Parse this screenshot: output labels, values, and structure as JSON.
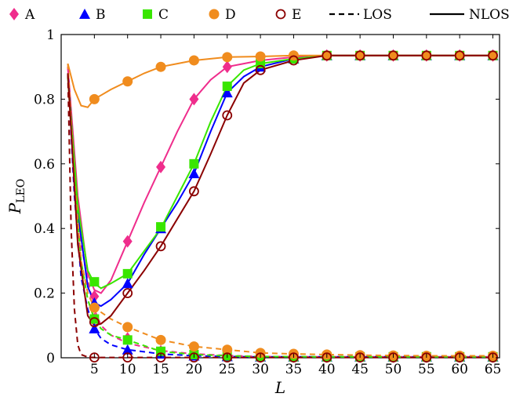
{
  "chart_data": {
    "type": "line",
    "title": "",
    "xlabel": "L",
    "ylabel": "P",
    "ylabel_sub": "LEO",
    "xlim": [
      0,
      66
    ],
    "ylim": [
      0,
      1
    ],
    "xticks": [
      5,
      10,
      15,
      20,
      25,
      30,
      35,
      40,
      45,
      50,
      55,
      60,
      65
    ],
    "yticks": [
      0,
      0.2,
      0.4,
      0.6,
      0.8,
      1
    ],
    "ytick_labels": [
      "0",
      "0.2",
      "0.4",
      "0.6",
      "0.8",
      "1"
    ],
    "grid": false,
    "legend_position": "top",
    "colors": {
      "A": "#ef2d8c",
      "B": "#0000ff",
      "C": "#39e600",
      "D": "#f08c1e",
      "E": "#8b0000"
    },
    "series": [
      {
        "name": "A",
        "marker": "diamond",
        "color": "#ef2d8c",
        "nlos": [
          [
            1,
            0.9
          ],
          [
            2.5,
            0.5
          ],
          [
            4,
            0.26
          ],
          [
            5,
            0.21
          ],
          [
            6,
            0.2
          ],
          [
            7.5,
            0.24
          ],
          [
            10,
            0.36
          ],
          [
            12.5,
            0.48
          ],
          [
            15,
            0.59
          ],
          [
            17.5,
            0.7
          ],
          [
            20,
            0.8
          ],
          [
            22.5,
            0.86
          ],
          [
            25,
            0.9
          ],
          [
            27.5,
            0.91
          ],
          [
            30,
            0.92
          ],
          [
            35,
            0.93
          ],
          [
            40,
            0.935
          ],
          [
            45,
            0.935
          ],
          [
            50,
            0.935
          ],
          [
            55,
            0.935
          ],
          [
            60,
            0.935
          ],
          [
            65,
            0.935
          ]
        ],
        "los": [
          [
            1,
            0.9
          ],
          [
            2,
            0.6
          ],
          [
            3,
            0.35
          ],
          [
            4,
            0.24
          ],
          [
            5,
            0.15
          ],
          [
            6,
            0.1
          ],
          [
            7.5,
            0.07
          ],
          [
            10,
            0.045
          ],
          [
            15,
            0.022
          ],
          [
            20,
            0.012
          ],
          [
            25,
            0.007
          ],
          [
            30,
            0.004
          ],
          [
            40,
            0.003
          ],
          [
            50,
            0.003
          ],
          [
            65,
            0.003
          ]
        ],
        "nlos_marks": [
          [
            5,
            0.19
          ],
          [
            10,
            0.36
          ],
          [
            15,
            0.59
          ],
          [
            20,
            0.8
          ],
          [
            25,
            0.9
          ],
          [
            30,
            0.91
          ],
          [
            35,
            0.93
          ],
          [
            40,
            0.935
          ],
          [
            45,
            0.935
          ],
          [
            50,
            0.935
          ],
          [
            55,
            0.935
          ],
          [
            60,
            0.935
          ],
          [
            65,
            0.935
          ]
        ],
        "los_marks": [
          [
            5,
            0.12
          ],
          [
            10,
            0.06
          ],
          [
            15,
            0.02
          ],
          [
            20,
            0.01
          ],
          [
            25,
            0.005
          ],
          [
            30,
            0.003
          ],
          [
            35,
            0.003
          ],
          [
            40,
            0.003
          ],
          [
            45,
            0.003
          ],
          [
            50,
            0.003
          ],
          [
            55,
            0.003
          ],
          [
            60,
            0.003
          ],
          [
            65,
            0.003
          ]
        ]
      },
      {
        "name": "B",
        "marker": "triangle",
        "color": "#0000ff",
        "nlos": [
          [
            1,
            0.88
          ],
          [
            2.5,
            0.45
          ],
          [
            4,
            0.22
          ],
          [
            5,
            0.17
          ],
          [
            6,
            0.16
          ],
          [
            7.5,
            0.18
          ],
          [
            10,
            0.23
          ],
          [
            12.5,
            0.32
          ],
          [
            15,
            0.4
          ],
          [
            17.5,
            0.48
          ],
          [
            20,
            0.57
          ],
          [
            22.5,
            0.7
          ],
          [
            25,
            0.82
          ],
          [
            27.5,
            0.87
          ],
          [
            30,
            0.9
          ],
          [
            35,
            0.925
          ],
          [
            40,
            0.935
          ],
          [
            45,
            0.935
          ],
          [
            50,
            0.935
          ],
          [
            55,
            0.935
          ],
          [
            60,
            0.935
          ],
          [
            65,
            0.935
          ]
        ],
        "los": [
          [
            1,
            0.88
          ],
          [
            2,
            0.5
          ],
          [
            3,
            0.25
          ],
          [
            4,
            0.15
          ],
          [
            5,
            0.09
          ],
          [
            6,
            0.06
          ],
          [
            7.5,
            0.04
          ],
          [
            10,
            0.025
          ],
          [
            15,
            0.012
          ],
          [
            20,
            0.006
          ],
          [
            25,
            0.004
          ],
          [
            30,
            0.003
          ],
          [
            40,
            0.003
          ],
          [
            65,
            0.003
          ]
        ],
        "nlos_marks": [
          [
            5,
            0.17
          ],
          [
            10,
            0.23
          ],
          [
            15,
            0.4
          ],
          [
            20,
            0.57
          ],
          [
            25,
            0.82
          ],
          [
            30,
            0.9
          ],
          [
            35,
            0.925
          ],
          [
            40,
            0.935
          ],
          [
            45,
            0.935
          ],
          [
            50,
            0.935
          ],
          [
            55,
            0.935
          ],
          [
            60,
            0.935
          ],
          [
            65,
            0.935
          ]
        ],
        "los_marks": [
          [
            5,
            0.09
          ],
          [
            10,
            0.025
          ],
          [
            15,
            0.012
          ],
          [
            20,
            0.006
          ],
          [
            25,
            0.004
          ],
          [
            30,
            0.003
          ],
          [
            35,
            0.003
          ],
          [
            40,
            0.003
          ],
          [
            45,
            0.003
          ],
          [
            50,
            0.003
          ],
          [
            55,
            0.003
          ],
          [
            60,
            0.003
          ],
          [
            65,
            0.003
          ]
        ]
      },
      {
        "name": "C",
        "marker": "square",
        "color": "#39e600",
        "nlos": [
          [
            1,
            0.87
          ],
          [
            2.5,
            0.47
          ],
          [
            4,
            0.27
          ],
          [
            5,
            0.23
          ],
          [
            6,
            0.215
          ],
          [
            7.5,
            0.23
          ],
          [
            10,
            0.26
          ],
          [
            12.5,
            0.33
          ],
          [
            15,
            0.4
          ],
          [
            17.5,
            0.5
          ],
          [
            20,
            0.6
          ],
          [
            22.5,
            0.73
          ],
          [
            25,
            0.84
          ],
          [
            27.5,
            0.89
          ],
          [
            30,
            0.91
          ],
          [
            35,
            0.925
          ],
          [
            40,
            0.935
          ],
          [
            45,
            0.935
          ],
          [
            50,
            0.935
          ],
          [
            55,
            0.935
          ],
          [
            60,
            0.935
          ],
          [
            65,
            0.935
          ]
        ],
        "los": [
          [
            1,
            0.87
          ],
          [
            2,
            0.55
          ],
          [
            3,
            0.3
          ],
          [
            4,
            0.18
          ],
          [
            5,
            0.12
          ],
          [
            6,
            0.09
          ],
          [
            7.5,
            0.07
          ],
          [
            10,
            0.055
          ],
          [
            15,
            0.02
          ],
          [
            20,
            0.01
          ],
          [
            25,
            0.006
          ],
          [
            30,
            0.004
          ],
          [
            40,
            0.003
          ],
          [
            65,
            0.003
          ]
        ],
        "nlos_marks": [
          [
            5,
            0.235
          ],
          [
            10,
            0.26
          ],
          [
            15,
            0.405
          ],
          [
            20,
            0.6
          ],
          [
            25,
            0.84
          ],
          [
            30,
            0.91
          ],
          [
            35,
            0.925
          ],
          [
            40,
            0.935
          ],
          [
            45,
            0.935
          ],
          [
            50,
            0.935
          ],
          [
            55,
            0.935
          ],
          [
            60,
            0.935
          ],
          [
            65,
            0.935
          ]
        ],
        "los_marks": [
          [
            5,
            0.12
          ],
          [
            10,
            0.055
          ],
          [
            15,
            0.02
          ],
          [
            20,
            0.01
          ],
          [
            25,
            0.006
          ],
          [
            30,
            0.004
          ],
          [
            35,
            0.003
          ],
          [
            40,
            0.003
          ],
          [
            45,
            0.003
          ],
          [
            50,
            0.003
          ],
          [
            55,
            0.003
          ],
          [
            60,
            0.003
          ],
          [
            65,
            0.003
          ]
        ]
      },
      {
        "name": "D",
        "marker": "circle",
        "color": "#f08c1e",
        "nlos": [
          [
            1,
            0.91
          ],
          [
            2,
            0.83
          ],
          [
            3,
            0.78
          ],
          [
            4,
            0.775
          ],
          [
            5,
            0.8
          ],
          [
            7.5,
            0.83
          ],
          [
            10,
            0.855
          ],
          [
            12.5,
            0.88
          ],
          [
            15,
            0.9
          ],
          [
            17.5,
            0.91
          ],
          [
            20,
            0.92
          ],
          [
            22.5,
            0.925
          ],
          [
            25,
            0.93
          ],
          [
            30,
            0.932
          ],
          [
            35,
            0.935
          ],
          [
            40,
            0.935
          ],
          [
            65,
            0.935
          ]
        ],
        "los": [
          [
            1,
            0.91
          ],
          [
            2,
            0.55
          ],
          [
            3,
            0.3
          ],
          [
            4,
            0.2
          ],
          [
            5,
            0.155
          ],
          [
            7.5,
            0.12
          ],
          [
            10,
            0.095
          ],
          [
            15,
            0.055
          ],
          [
            20,
            0.035
          ],
          [
            25,
            0.025
          ],
          [
            30,
            0.015
          ],
          [
            35,
            0.012
          ],
          [
            40,
            0.01
          ],
          [
            45,
            0.008
          ],
          [
            50,
            0.007
          ],
          [
            55,
            0.006
          ],
          [
            60,
            0.006
          ],
          [
            65,
            0.006
          ]
        ],
        "nlos_marks": [
          [
            5,
            0.8
          ],
          [
            10,
            0.855
          ],
          [
            15,
            0.9
          ],
          [
            20,
            0.92
          ],
          [
            25,
            0.93
          ],
          [
            30,
            0.932
          ],
          [
            35,
            0.935
          ],
          [
            40,
            0.935
          ],
          [
            45,
            0.935
          ],
          [
            50,
            0.935
          ],
          [
            55,
            0.935
          ],
          [
            60,
            0.935
          ],
          [
            65,
            0.935
          ]
        ],
        "los_marks": [
          [
            5,
            0.155
          ],
          [
            10,
            0.095
          ],
          [
            15,
            0.055
          ],
          [
            20,
            0.035
          ],
          [
            25,
            0.025
          ],
          [
            30,
            0.015
          ],
          [
            35,
            0.012
          ],
          [
            40,
            0.01
          ],
          [
            45,
            0.008
          ],
          [
            50,
            0.007
          ],
          [
            55,
            0.006
          ],
          [
            60,
            0.006
          ],
          [
            65,
            0.006
          ]
        ]
      },
      {
        "name": "E",
        "marker": "open-circle",
        "color": "#8b0000",
        "nlos": [
          [
            1,
            0.88
          ],
          [
            2.5,
            0.35
          ],
          [
            4,
            0.13
          ],
          [
            5,
            0.1
          ],
          [
            6,
            0.105
          ],
          [
            7.5,
            0.13
          ],
          [
            10,
            0.2
          ],
          [
            12.5,
            0.27
          ],
          [
            15,
            0.345
          ],
          [
            17.5,
            0.43
          ],
          [
            20,
            0.515
          ],
          [
            22.5,
            0.63
          ],
          [
            25,
            0.75
          ],
          [
            27.5,
            0.85
          ],
          [
            30,
            0.89
          ],
          [
            35,
            0.92
          ],
          [
            40,
            0.935
          ],
          [
            45,
            0.935
          ],
          [
            50,
            0.935
          ],
          [
            55,
            0.935
          ],
          [
            60,
            0.935
          ],
          [
            65,
            0.935
          ]
        ],
        "los": [
          [
            1,
            0.88
          ],
          [
            1.5,
            0.4
          ],
          [
            2,
            0.15
          ],
          [
            2.5,
            0.04
          ],
          [
            3,
            0.01
          ],
          [
            4,
            0.002
          ],
          [
            5,
            0.001
          ],
          [
            65,
            0.001
          ]
        ],
        "nlos_marks": [
          [
            5,
            0.11
          ],
          [
            10,
            0.2
          ],
          [
            15,
            0.345
          ],
          [
            20,
            0.515
          ],
          [
            25,
            0.75
          ],
          [
            30,
            0.89
          ],
          [
            35,
            0.92
          ],
          [
            40,
            0.935
          ],
          [
            45,
            0.935
          ],
          [
            50,
            0.935
          ],
          [
            55,
            0.935
          ],
          [
            60,
            0.935
          ],
          [
            65,
            0.935
          ]
        ],
        "los_marks": [
          [
            5,
            0.001
          ],
          [
            10,
            0.001
          ],
          [
            15,
            0.001
          ],
          [
            20,
            0.001
          ],
          [
            25,
            0.001
          ],
          [
            30,
            0.001
          ],
          [
            35,
            0.001
          ],
          [
            40,
            0.001
          ],
          [
            45,
            0.001
          ],
          [
            50,
            0.001
          ],
          [
            55,
            0.001
          ],
          [
            60,
            0.001
          ],
          [
            65,
            0.001
          ]
        ]
      }
    ],
    "line_styles": [
      {
        "name": "LOS",
        "style": "dashed"
      },
      {
        "name": "NLOS",
        "style": "solid"
      }
    ]
  }
}
